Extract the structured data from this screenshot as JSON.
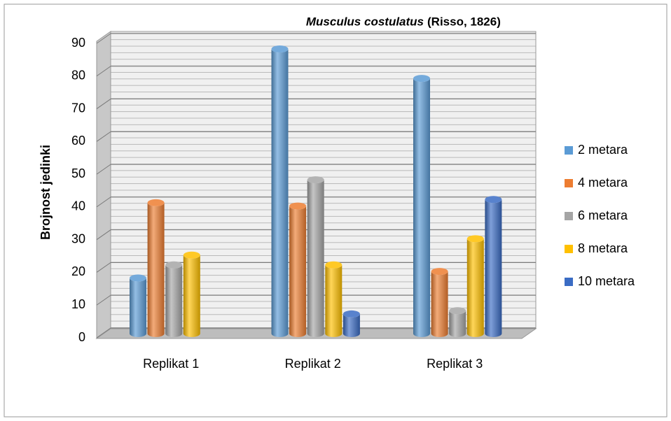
{
  "chart_data": {
    "type": "bar3d",
    "title": "Musculus costulatus",
    "title_author": "(Risso, 1826)",
    "y_label": "Brojnost jedinki",
    "categories": [
      "Replikat 1",
      "Replikat 2",
      "Replikat 3"
    ],
    "series": [
      {
        "name": "2 metara",
        "color": "#5b9bd5",
        "values": [
          17,
          87,
          78
        ]
      },
      {
        "name": "4 metara",
        "color": "#ed7d31",
        "values": [
          40,
          39,
          19
        ]
      },
      {
        "name": "6 metara",
        "color": "#a5a5a5",
        "values": [
          21,
          47,
          7
        ]
      },
      {
        "name": "8 metara",
        "color": "#ffc000",
        "values": [
          24,
          21,
          29
        ]
      },
      {
        "name": "10 metara",
        "color": "#3a6cc4",
        "values": [
          null,
          6,
          41
        ]
      }
    ],
    "ylim": [
      0,
      90
    ],
    "yticks": [
      0,
      10,
      20,
      30,
      40,
      50,
      60,
      70,
      80,
      90
    ],
    "grid": true,
    "legend": "right"
  }
}
